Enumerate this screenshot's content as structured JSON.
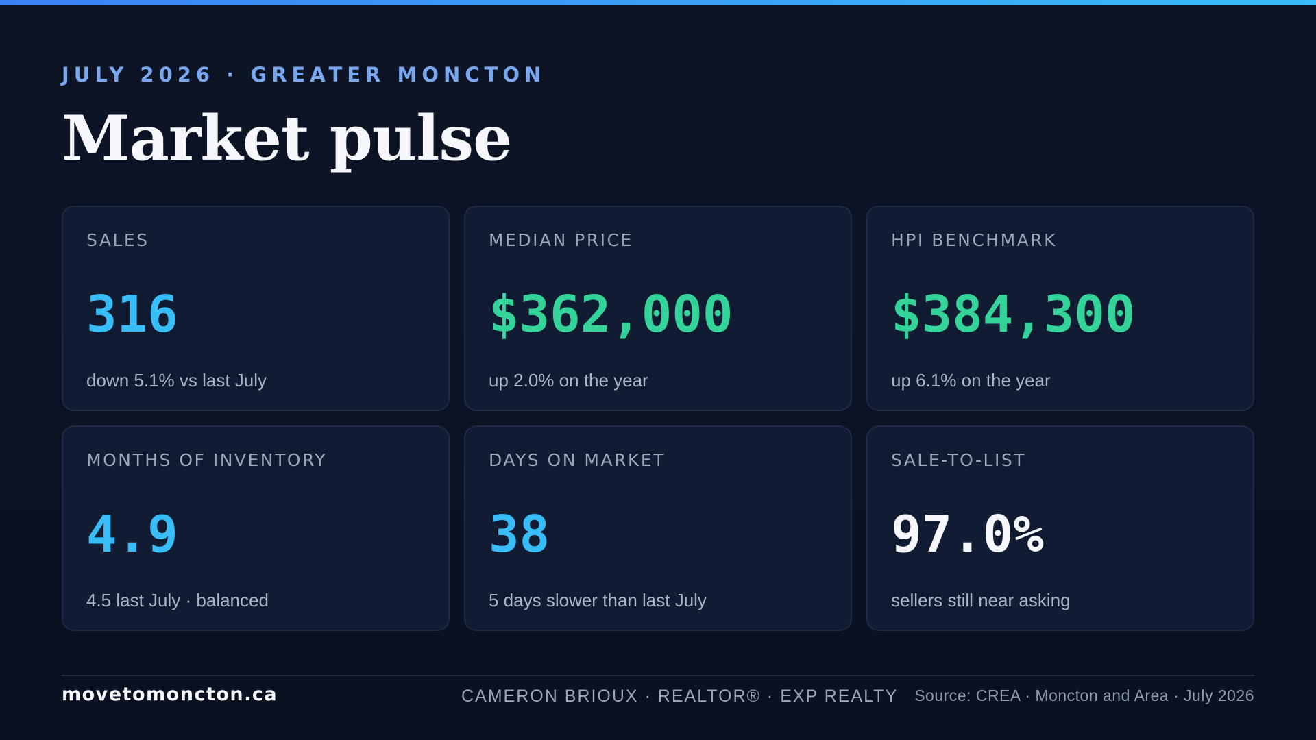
{
  "header": {
    "eyebrow": "JULY 2026 · GREATER MONCTON",
    "title": "Market pulse"
  },
  "colors": {
    "accent_blue": "#38bdf8",
    "accent_green": "#34d399",
    "white_value": "#f5f7fb",
    "eyebrow": "#7aa8f0"
  },
  "cards": [
    {
      "label": "SALES",
      "value": "316",
      "note": "down 5.1% vs last July",
      "value_color": "#38bdf8"
    },
    {
      "label": "MEDIAN PRICE",
      "value": "$362,000",
      "note": "up 2.0% on the year",
      "value_color": "#34d399"
    },
    {
      "label": "HPI BENCHMARK",
      "value": "$384,300",
      "note": "up 6.1% on the year",
      "value_color": "#34d399"
    },
    {
      "label": "MONTHS OF INVENTORY",
      "value": "4.9",
      "note": "4.5 last July · balanced",
      "value_color": "#38bdf8"
    },
    {
      "label": "DAYS ON MARKET",
      "value": "38",
      "note": "5 days slower than last July",
      "value_color": "#38bdf8"
    },
    {
      "label": "SALE-TO-LIST",
      "value": "97.0%",
      "note": "sellers still near asking",
      "value_color": "#f5f7fb"
    }
  ],
  "footer": {
    "site": "movetomoncton.ca",
    "agent": "CAMERON BRIOUX · REALTOR® · EXP REALTY",
    "source": "Source: CREA · Moncton and Area · July 2026"
  }
}
